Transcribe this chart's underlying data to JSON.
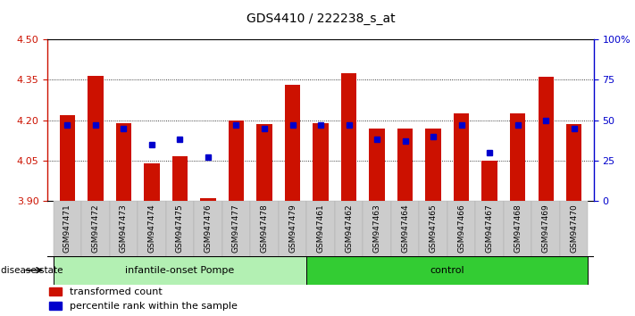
{
  "title": "GDS4410 / 222238_s_at",
  "categories": [
    "GSM947471",
    "GSM947472",
    "GSM947473",
    "GSM947474",
    "GSM947475",
    "GSM947476",
    "GSM947477",
    "GSM947478",
    "GSM947479",
    "GSM947461",
    "GSM947462",
    "GSM947463",
    "GSM947464",
    "GSM947465",
    "GSM947466",
    "GSM947467",
    "GSM947468",
    "GSM947469",
    "GSM947470"
  ],
  "red_values": [
    4.22,
    4.365,
    4.19,
    4.038,
    4.065,
    3.91,
    4.2,
    4.185,
    4.33,
    4.19,
    4.375,
    4.17,
    4.17,
    4.17,
    4.225,
    4.05,
    4.225,
    4.36,
    4.185
  ],
  "blue_pct": [
    47,
    47,
    45,
    35,
    38,
    27,
    47,
    45,
    47,
    47,
    47,
    38,
    37,
    40,
    47,
    30,
    47,
    50,
    45
  ],
  "groups": [
    {
      "label": "infantile-onset Pompe",
      "start": 0,
      "end": 9,
      "color": "#b3f0b3"
    },
    {
      "label": "control",
      "start": 9,
      "end": 19,
      "color": "#33cc33"
    }
  ],
  "ylim_left": [
    3.9,
    4.5
  ],
  "ylim_right": [
    0,
    100
  ],
  "yticks_left": [
    3.9,
    4.05,
    4.2,
    4.35,
    4.5
  ],
  "yticks_right": [
    0,
    25,
    50,
    75,
    100
  ],
  "bar_color": "#cc1100",
  "dot_color": "#0000cc",
  "base_value": 3.9,
  "legend_items": [
    "transformed count",
    "percentile rank within the sample"
  ],
  "disease_state_label": "disease state"
}
